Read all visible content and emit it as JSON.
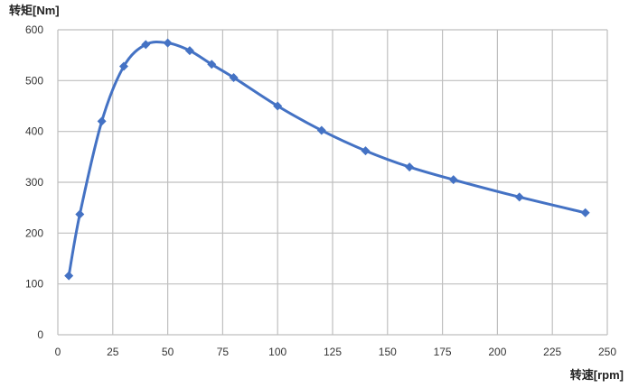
{
  "chart_data": {
    "type": "line",
    "title": "",
    "xlabel": "转速[rpm]",
    "ylabel": "转矩[Nm]",
    "xlim": [
      0,
      250
    ],
    "ylim": [
      0,
      600
    ],
    "xticks": [
      0,
      25,
      50,
      75,
      100,
      125,
      150,
      175,
      200,
      225,
      250
    ],
    "yticks": [
      0,
      100,
      200,
      300,
      400,
      500,
      600
    ],
    "grid": true,
    "smooth": true,
    "marker": "diamond",
    "color": "#4472C4",
    "grid_color": "#BFBFBF",
    "series": [
      {
        "x": [
          5,
          10,
          20,
          30,
          40,
          50,
          60,
          70,
          80,
          100,
          120,
          140,
          160,
          180,
          210,
          240
        ],
        "y": [
          116,
          237,
          420,
          528,
          571,
          574,
          559,
          532,
          506,
          450,
          402,
          362,
          330,
          305,
          271,
          240
        ]
      }
    ]
  }
}
